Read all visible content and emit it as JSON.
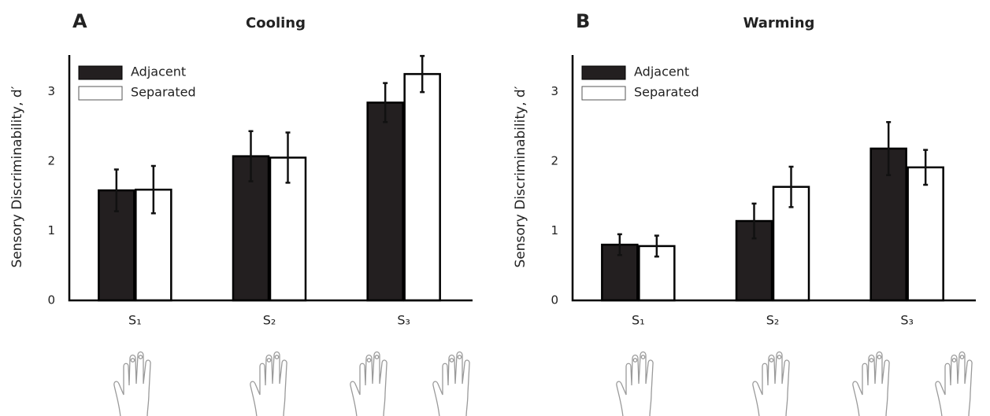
{
  "chart_data": [
    {
      "type": "bar",
      "label": "A",
      "title": "Cooling",
      "ylabel": "Sensory Discriminability, d′",
      "categories": [
        "S₁",
        "S₂",
        "S₃"
      ],
      "series": [
        {
          "name": "Adjacent",
          "color": "#231f20",
          "edgecolor": "#000000",
          "values": [
            1.58,
            2.07,
            2.84
          ],
          "errors": [
            0.3,
            0.36,
            0.28
          ]
        },
        {
          "name": "Separated",
          "color": "#ffffff",
          "edgecolor": "#000000",
          "values": [
            1.59,
            2.05,
            3.25
          ],
          "errors": [
            0.34,
            0.36,
            0.26
          ]
        }
      ],
      "ylim": [
        0,
        3.5
      ],
      "yticks": [
        0,
        1,
        2,
        3
      ],
      "grid": false,
      "legend": "upper left"
    },
    {
      "type": "bar",
      "label": "B",
      "title": "Warming",
      "ylabel": "Sensory Discriminability, d′",
      "categories": [
        "S₁",
        "S₂",
        "S₃"
      ],
      "series": [
        {
          "name": "Adjacent",
          "color": "#231f20",
          "edgecolor": "#000000",
          "values": [
            0.8,
            1.14,
            2.18
          ],
          "errors": [
            0.15,
            0.25,
            0.38
          ]
        },
        {
          "name": "Separated",
          "color": "#ffffff",
          "edgecolor": "#000000",
          "values": [
            0.78,
            1.63,
            1.91
          ],
          "errors": [
            0.15,
            0.29,
            0.25
          ]
        }
      ],
      "ylim": [
        0,
        3.5
      ],
      "yticks": [
        0,
        1,
        2,
        3
      ],
      "grid": false,
      "legend": "upper left"
    }
  ]
}
